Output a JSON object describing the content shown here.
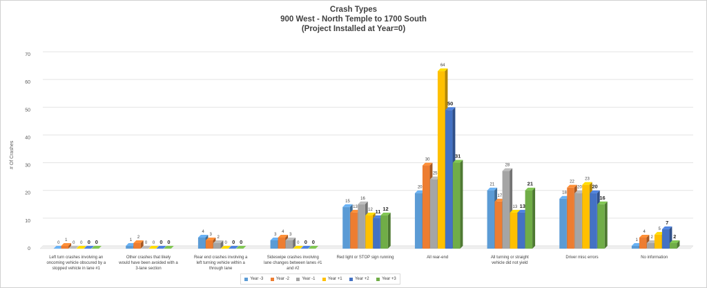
{
  "chart_data": {
    "type": "bar",
    "title": "Crash Types",
    "subtitle": "900 West - North Temple to 1700 South",
    "subtitle2": "(Project Installed at Year=0)",
    "ylabel": "# Of Crashes",
    "xlabel": "",
    "ylim": [
      0,
      70
    ],
    "yticks": [
      0,
      10,
      20,
      30,
      40,
      50,
      60,
      70
    ],
    "grid": true,
    "legend_position": "bottom",
    "categories": [
      "Left turn crashes involving an oncoming vehicle obscured by a stopped vehicle in lane #1",
      "Other crashes that likely would have been avoided with a 3-lane section",
      "Rear end crashes involving a left turning vehicle within a through lane",
      "Sideswipe crashes involving lane changes between lanes #1 and #2",
      "Red light or STOP sign running",
      "All rear-end",
      "All turning or straight vehicle did not yield",
      "Driver misc errors",
      "No information"
    ],
    "series": [
      {
        "name": "Year -3",
        "color": "#5b9bd5",
        "values": [
          0,
          1,
          4,
          3,
          15,
          20,
          21,
          18,
          1
        ]
      },
      {
        "name": "Year -2",
        "color": "#ed7d31",
        "values": [
          1,
          2,
          3,
          4,
          13,
          30,
          17,
          22,
          4
        ]
      },
      {
        "name": "Year -1",
        "color": "#a5a5a5",
        "values": [
          0,
          0,
          2,
          3,
          16,
          25,
          28,
          20,
          2
        ]
      },
      {
        "name": "Year +1",
        "color": "#ffc000",
        "values": [
          0,
          0,
          0,
          0,
          12,
          64,
          13,
          23,
          5
        ]
      },
      {
        "name": "Year +2",
        "color": "#4472c4",
        "values": [
          0,
          0,
          0,
          0,
          11,
          50,
          13,
          20,
          7
        ]
      },
      {
        "name": "Year +3",
        "color": "#70ad47",
        "values": [
          0,
          0,
          0,
          0,
          12,
          31,
          21,
          16,
          2
        ]
      }
    ]
  }
}
